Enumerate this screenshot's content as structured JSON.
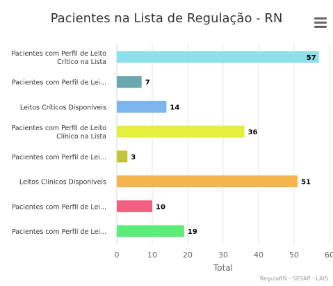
{
  "chart_data": {
    "type": "bar",
    "orientation": "horizontal",
    "title": "Pacientes na Lista de Regulação - RN",
    "xlabel": "Total",
    "ylabel": "",
    "xlim": [
      0,
      60
    ],
    "xticks": [
      0,
      10,
      20,
      30,
      40,
      50,
      60
    ],
    "grid": true,
    "legend": "none",
    "categories": [
      [
        "Pacientes com Perfil de Leito",
        "Crítico na Lista"
      ],
      [
        "Pacientes com Perfil de Lei..."
      ],
      [
        "Leitos Críticos Disponíveis"
      ],
      [
        "Pacientes com Perfil de Leito",
        "Clínico na Lista"
      ],
      [
        "Pacientes com Perfil de Lei..."
      ],
      [
        "Leitos Clínicos Disponíveis"
      ],
      [
        "Pacientes com Perfil de Lei..."
      ],
      [
        "Pacientes com Perfil de Lei..."
      ]
    ],
    "values": [
      57,
      7,
      14,
      36,
      3,
      51,
      10,
      19
    ],
    "colors": [
      "#90e0eb",
      "#68a8ae",
      "#7bb5ec",
      "#e4ee3c",
      "#c3c33d",
      "#f5b54e",
      "#f1617f",
      "#5eec78"
    ]
  },
  "credits": "RegulaRN - SESAP - LAIS",
  "menu_icon": "hamburger-menu-icon"
}
